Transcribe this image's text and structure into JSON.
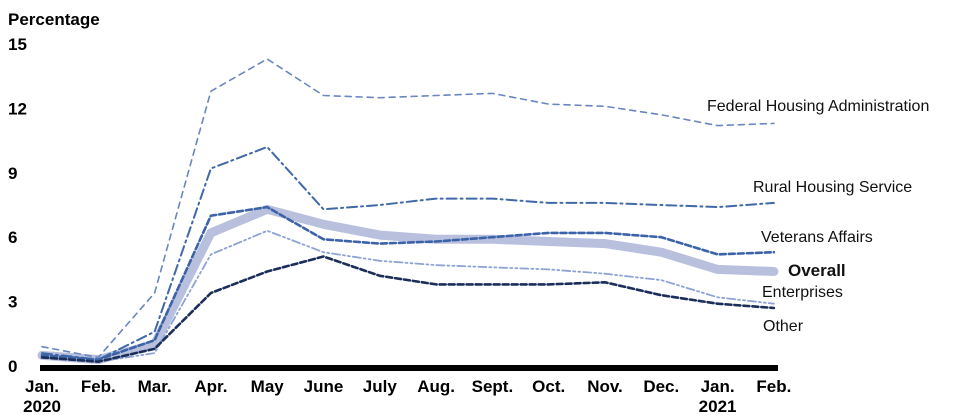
{
  "chart_data": {
    "type": "line",
    "ylabel": "Percentage",
    "ylim": [
      0,
      15
    ],
    "yticks": [
      0,
      3,
      6,
      9,
      12,
      15
    ],
    "x_labels": [
      "Jan.",
      "Feb.",
      "Mar.",
      "Apr.",
      "May",
      "June",
      "July",
      "Aug.",
      "Sept.",
      "Oct.",
      "Nov.",
      "Dec.",
      "Jan.",
      "Feb."
    ],
    "year_labels": [
      {
        "index": 0,
        "text": "2020"
      },
      {
        "index": 12,
        "text": "2021"
      }
    ],
    "series": [
      {
        "name": "Federal Housing Administration",
        "color": "#6a86bf",
        "style": "dashed-thin",
        "values": [
          0.9,
          0.4,
          3.4,
          12.8,
          14.3,
          12.6,
          12.5,
          12.6,
          12.7,
          12.2,
          12.1,
          11.7,
          11.2,
          11.3
        ]
      },
      {
        "name": "Rural Housing Service",
        "color": "#3f69a8",
        "style": "dash-dot",
        "values": [
          0.6,
          0.3,
          1.6,
          9.2,
          10.2,
          7.3,
          7.5,
          7.8,
          7.8,
          7.6,
          7.6,
          7.5,
          7.4,
          7.6
        ]
      },
      {
        "name": "Veterans Affairs",
        "color": "#3c63a8",
        "style": "dashed",
        "values": [
          0.5,
          0.3,
          1.2,
          7.0,
          7.4,
          5.9,
          5.7,
          5.8,
          6.0,
          6.2,
          6.2,
          6.0,
          5.2,
          5.3
        ]
      },
      {
        "name": "Overall",
        "color": "#b8c0de",
        "style": "thick",
        "values": [
          0.5,
          0.3,
          1.0,
          6.2,
          7.3,
          6.6,
          6.1,
          5.9,
          5.9,
          5.8,
          5.7,
          5.3,
          4.5,
          4.4
        ]
      },
      {
        "name": "Enterprises",
        "color": "#8ea3d4",
        "style": "dash-dot-dot",
        "values": [
          0.4,
          0.2,
          0.6,
          5.2,
          6.3,
          5.3,
          4.9,
          4.7,
          4.6,
          4.5,
          4.3,
          4.0,
          3.2,
          2.9
        ]
      },
      {
        "name": "Other",
        "color": "#1b2e5a",
        "style": "dashed",
        "values": [
          0.4,
          0.2,
          0.8,
          3.4,
          4.4,
          5.1,
          4.2,
          3.8,
          3.8,
          3.8,
          3.9,
          3.3,
          2.9,
          2.7
        ]
      }
    ],
    "legend": "direct-labels-right",
    "grid": false
  }
}
